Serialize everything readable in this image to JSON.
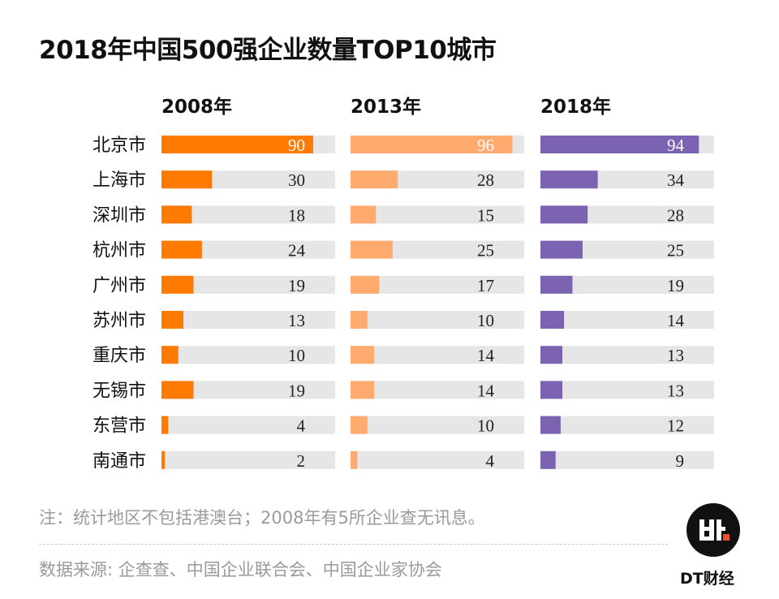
{
  "title": "2018年中国500强企业数量TOP10城市",
  "note": "注：统计地区不包括港澳台；2008年有5所企业查无讯息。",
  "source": "数据来源: 企查查、中国企业联合会、中国企业家协会",
  "brand": {
    "logo_text": "DT财经",
    "logo_mark": "dt.",
    "accent": "#f0502a"
  },
  "chart_data": {
    "type": "bar",
    "orientation": "horizontal",
    "title": "2018年中国500强企业数量TOP10城市",
    "categories": [
      "北京市",
      "上海市",
      "深圳市",
      "杭州市",
      "广州市",
      "苏州市",
      "重庆市",
      "无锡市",
      "东营市",
      "南通市"
    ],
    "series": [
      {
        "name": "2008年",
        "color": "#ff7a00",
        "values": [
          90,
          30,
          18,
          24,
          19,
          13,
          10,
          19,
          4,
          2
        ]
      },
      {
        "name": "2013年",
        "color": "#ffab70",
        "values": [
          96,
          28,
          15,
          25,
          17,
          10,
          14,
          14,
          10,
          4
        ]
      },
      {
        "name": "2018年",
        "color": "#7c63b2",
        "values": [
          94,
          34,
          28,
          25,
          19,
          14,
          13,
          13,
          12,
          9
        ]
      }
    ],
    "track_color": "#e6e6e6",
    "xlim": [
      0,
      103
    ],
    "grid": false
  }
}
